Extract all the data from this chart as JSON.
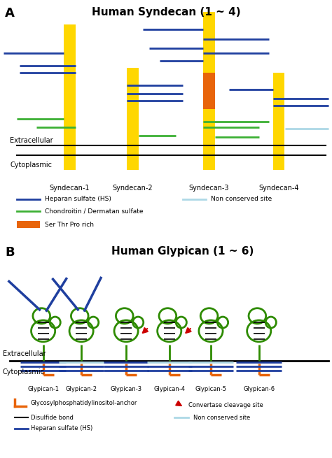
{
  "title_a": "Human Syndecan (1 ~ 4)",
  "title_b": "Human Glypican (1 ~ 6)",
  "panel_a_label": "A",
  "panel_b_label": "B",
  "syndecan_labels": [
    "Syndecan-1",
    "Syndecan-2",
    "Syndecan-3",
    "Syndecan-4"
  ],
  "glypican_labels": [
    "Glypican-1",
    "Glypican-2",
    "Glypican-3",
    "Glypican-4",
    "Glypican-5",
    "Glypican-6"
  ],
  "colors": {
    "yellow": "#FFD700",
    "orange": "#E8640A",
    "blue": "#1F3F9F",
    "green": "#3CB034",
    "light_blue": "#ADD8E6",
    "red": "#CC0000",
    "black": "#000000",
    "white": "#FFFFFF",
    "dark_green": "#2E8B00"
  }
}
